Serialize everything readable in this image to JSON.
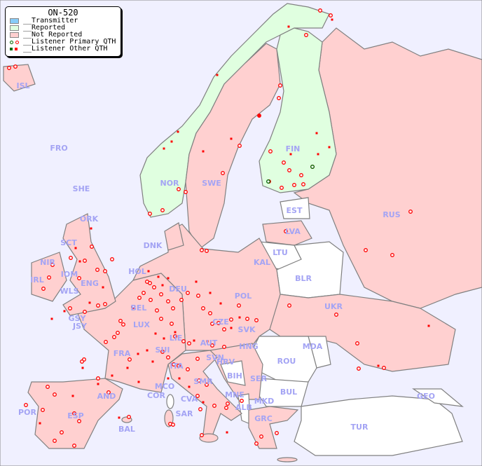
{
  "legend": {
    "title": "ON-520",
    "items": [
      {
        "label": "__Transmitter",
        "color": "#88ccf8"
      },
      {
        "label": "__Reported",
        "color": "#e0ffe0"
      },
      {
        "label": "__Not Reported",
        "color": "#ffd0d0"
      },
      {
        "label": "__Listener Primary QTH",
        "colors": [
          "#006600",
          "#ff0000"
        ],
        "icon": "ring-marker"
      },
      {
        "label": "__Listener Other QTH",
        "colors": [
          "#006600",
          "#ff0000"
        ],
        "icon": "square-marker"
      }
    ]
  },
  "colors": {
    "sea": "#f0f0ff",
    "not_reported": "#ffd0d0",
    "reported": "#e0ffe0",
    "no_data": "#ffffff",
    "border": "#808080",
    "label": "#a4a4f4",
    "marker": "#ff0000"
  },
  "countries": {
    "ISL": "ISL",
    "FRO": "FRO",
    "SHE": "SHE",
    "ORK": "ORK",
    "NOR": "NOR",
    "SWE": "SWE",
    "FIN": "FIN",
    "RUS": "RUS",
    "EST": "EST",
    "LVA": "LVA",
    "LTU": "LTU",
    "KAL": "KAL",
    "BLR": "BLR",
    "UKR": "UKR",
    "MDA": "MDA",
    "ROU": "ROU",
    "BUL": "BUL",
    "TUR": "TUR",
    "GEO": "GEO",
    "GRC": "GRC",
    "MKD": "MKD",
    "ALB": "ALB",
    "MNE": "MNE",
    "SER": "SER",
    "BIH": "BIH",
    "HRV": "HRV",
    "SVN": "SVN",
    "HNG": "HNG",
    "SVK": "SVK",
    "CZE": "CZE",
    "POL": "POL",
    "AUT": "AUT",
    "DEU": "DEU",
    "DNK": "DNK",
    "HOL": "HOL",
    "BEL": "BEL",
    "LUX": "LUX",
    "LIE": "LIE",
    "SUI": "SUI",
    "ITA": "ITA",
    "SMR": "SMR",
    "CVA": "CVA",
    "MCO": "MCO",
    "COR": "COR",
    "SAR": "SAR",
    "FRA": "FRA",
    "AND": "AND",
    "ESP": "ESP",
    "POR": "POR",
    "BAL": "BAL",
    "GSY": "GSY",
    "JSY": "JSY",
    "ENG": "ENG",
    "WLS": "WLS",
    "IOM": "IOM",
    "SCT": "SCT",
    "NIR": "NIR",
    "IRL": "IRL"
  }
}
